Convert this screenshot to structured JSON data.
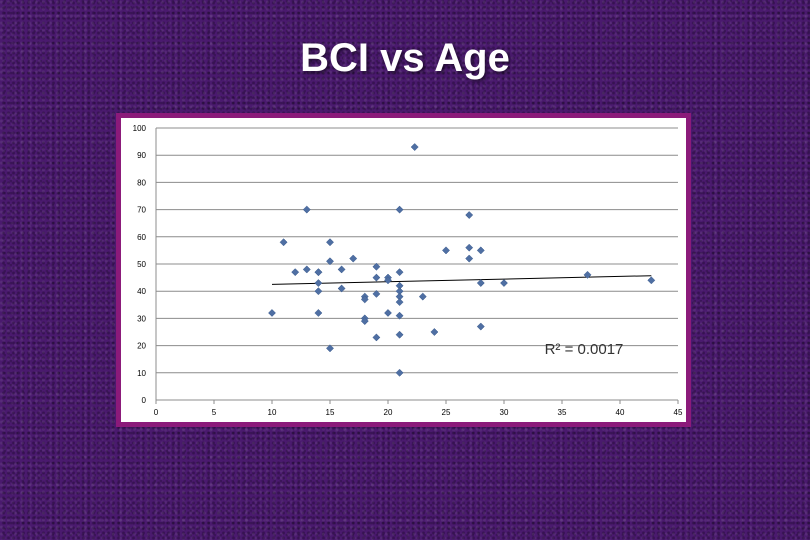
{
  "slide": {
    "title": "BCI vs Age"
  },
  "chart_data": {
    "type": "scatter",
    "title": "",
    "xlabel": "",
    "ylabel": "",
    "xlim": [
      0,
      45
    ],
    "ylim": [
      0,
      100
    ],
    "xticks": [
      0,
      5,
      10,
      15,
      20,
      25,
      30,
      35,
      40,
      45
    ],
    "yticks": [
      0,
      10,
      20,
      30,
      40,
      50,
      60,
      70,
      80,
      90,
      100
    ],
    "grid": "horizontal",
    "marker_color": "#4f6fa3",
    "trendline_color": "#000000",
    "series": [
      {
        "points": [
          [
            10,
            32
          ],
          [
            11,
            58
          ],
          [
            12,
            47
          ],
          [
            13,
            48
          ],
          [
            13,
            70
          ],
          [
            14,
            47
          ],
          [
            14,
            47
          ],
          [
            14,
            43
          ],
          [
            14,
            40
          ],
          [
            14,
            32
          ],
          [
            15,
            58
          ],
          [
            15,
            51
          ],
          [
            15,
            19
          ],
          [
            16,
            48
          ],
          [
            16,
            41
          ],
          [
            17,
            52
          ],
          [
            18,
            38
          ],
          [
            18,
            37
          ],
          [
            18,
            30
          ],
          [
            18,
            29
          ],
          [
            19,
            49
          ],
          [
            19,
            45
          ],
          [
            19,
            39
          ],
          [
            19,
            23
          ],
          [
            20,
            45
          ],
          [
            20,
            44
          ],
          [
            20,
            32
          ],
          [
            21,
            70
          ],
          [
            21,
            47
          ],
          [
            21,
            42
          ],
          [
            21,
            40
          ],
          [
            21,
            38
          ],
          [
            21,
            36
          ],
          [
            21,
            31
          ],
          [
            21,
            24
          ],
          [
            21,
            10
          ],
          [
            22.3,
            93
          ],
          [
            23,
            38
          ],
          [
            24,
            25
          ],
          [
            25,
            55
          ],
          [
            27,
            68
          ],
          [
            27,
            56
          ],
          [
            27,
            52
          ],
          [
            28,
            55
          ],
          [
            28,
            43
          ],
          [
            28,
            27
          ],
          [
            30,
            43
          ],
          [
            37.2,
            46
          ],
          [
            42.7,
            44
          ]
        ]
      }
    ],
    "trendline": {
      "x": [
        10,
        42.7
      ],
      "y": [
        42.5,
        45.7
      ]
    },
    "annotation": {
      "text": "R² = 0.0017",
      "x": 33.5,
      "y": 17
    }
  }
}
